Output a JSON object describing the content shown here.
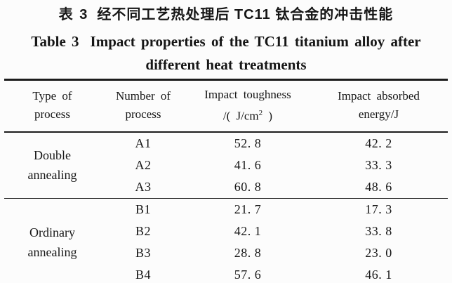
{
  "colors": {
    "ink": "#161616",
    "paper": "#fcfcfc"
  },
  "title": {
    "zh_label": "表 3",
    "zh_text": "经不同工艺热处理后 TC11 钛合金的冲击性能",
    "en_label": "Table 3",
    "en_text": "Impact properties of the TC11 titanium alloy after",
    "en_line2": "different heat treatments"
  },
  "table": {
    "headers": [
      {
        "line1": "Type of",
        "line2": "process"
      },
      {
        "line1": "Number of",
        "line2": "process"
      },
      {
        "line1": "Impact toughness",
        "line2_prefix": "/( J/cm",
        "line2_sup": "2",
        "line2_suffix": " )"
      },
      {
        "line1": "Impact absorbed",
        "line2": "energy/J"
      }
    ],
    "groups": [
      {
        "type_line1": "Double",
        "type_line2": "annealing",
        "rows": [
          {
            "number": "A1",
            "toughness": "52. 8",
            "energy": "42. 2"
          },
          {
            "number": "A2",
            "toughness": "41. 6",
            "energy": "33. 3"
          },
          {
            "number": "A3",
            "toughness": "60. 8",
            "energy": "48. 6"
          }
        ]
      },
      {
        "type_line1": "Ordinary",
        "type_line2": "annealing",
        "rows": [
          {
            "number": "B1",
            "toughness": "21. 7",
            "energy": "17. 3"
          },
          {
            "number": "B2",
            "toughness": "42. 1",
            "energy": "33. 8"
          },
          {
            "number": "B3",
            "toughness": "28. 8",
            "energy": "23. 0"
          },
          {
            "number": "B4",
            "toughness": "57. 6",
            "energy": "46. 1"
          }
        ]
      }
    ]
  }
}
